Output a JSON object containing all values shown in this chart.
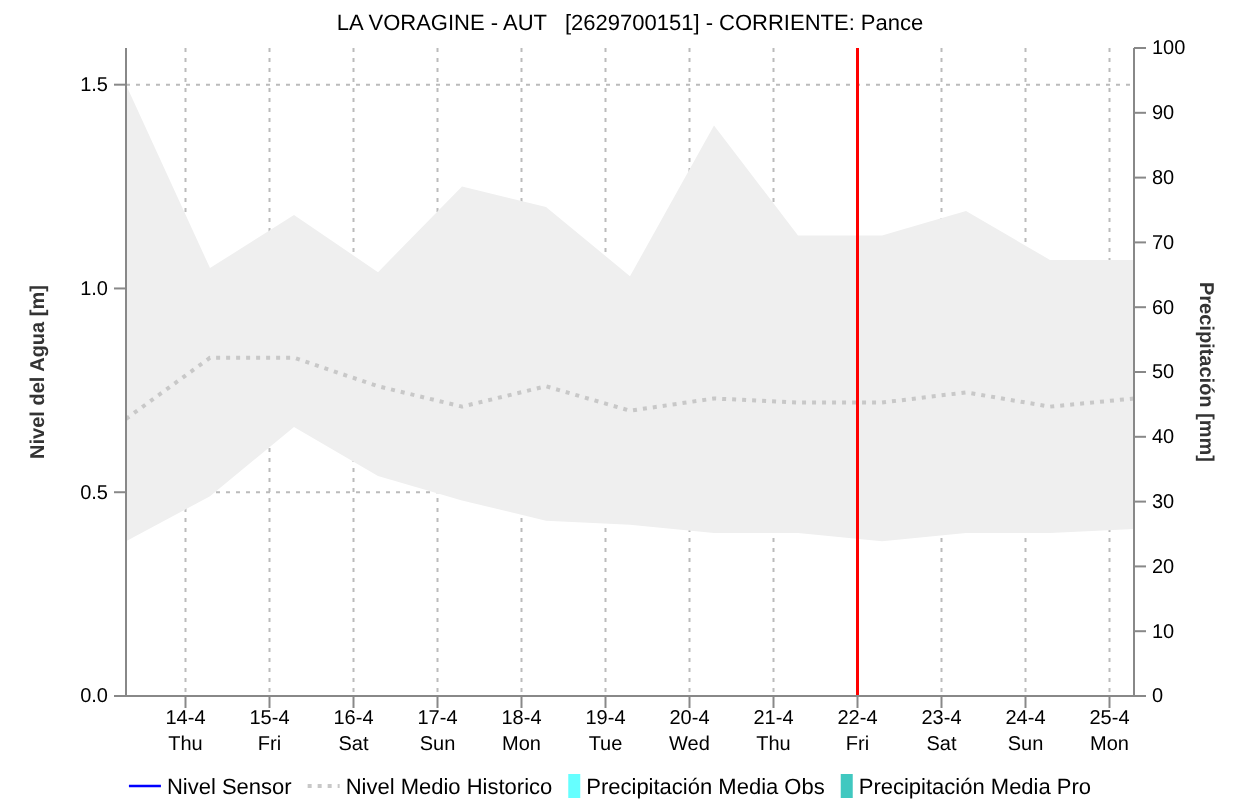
{
  "chart_data": {
    "type": "line",
    "title": "LA VORAGINE - AUT   [2629700151] - CORRIENTE: Pance",
    "ylabel": "Nivel del Agua [m]",
    "y2label": "Precipitación [mm]",
    "x": [
      "--04-13T07:00",
      "--04-14T07:00",
      "--04-15T07:00",
      "--04-16T07:00",
      "--04-17T07:00",
      "--04-18T07:00",
      "--04-19T07:00",
      "--04-20T07:00",
      "--04-21T07:00",
      "--04-22T07:00",
      "--04-23T07:00",
      "--04-24T07:00",
      "--04-25T07:00"
    ],
    "xlim": [
      "--04-13T07:00",
      "--04-25T07:00"
    ],
    "xticks": [
      {
        "value": "--04-14",
        "label": "14-4\nThu"
      },
      {
        "value": "--04-15",
        "label": "15-4\nFri"
      },
      {
        "value": "--04-16",
        "label": "16-4\nSat"
      },
      {
        "value": "--04-17",
        "label": "17-4\nSun"
      },
      {
        "value": "--04-18",
        "label": "18-4\nMon"
      },
      {
        "value": "--04-19",
        "label": "19-4\nTue"
      },
      {
        "value": "--04-20",
        "label": "20-4\nWed"
      },
      {
        "value": "--04-21",
        "label": "21-4\nThu"
      },
      {
        "value": "--04-22",
        "label": "22-4\nFri"
      },
      {
        "value": "--04-23",
        "label": "23-4\nSat"
      },
      {
        "value": "--04-24",
        "label": "24-4\nSun"
      },
      {
        "value": "--04-25",
        "label": "25-4\nMon"
      }
    ],
    "ylim": [
      0,
      1.59
    ],
    "yticks": [
      {
        "value": 0,
        "label": "0.0"
      },
      0.5,
      {
        "value": 1,
        "label": "1.0"
      },
      1.5
    ],
    "y2lim": [
      0,
      100
    ],
    "y2ticks": [
      0,
      10,
      20,
      30,
      40,
      50,
      60,
      70,
      80,
      90,
      100
    ],
    "series": [
      {
        "name": "Nivel Sensor",
        "color": "#0000ff",
        "line_style": "solid",
        "values": [
          null,
          null,
          null,
          null,
          null,
          null,
          null,
          null,
          null,
          null,
          null,
          null,
          null
        ]
      },
      {
        "name": "Nivel Medio Historico",
        "color": "#c8c8c8",
        "line_style": "dotted",
        "values": [
          0.68,
          0.83,
          0.83,
          0.76,
          0.71,
          0.76,
          0.7,
          0.73,
          0.72,
          0.72,
          0.745,
          0.71,
          0.73
        ],
        "lower": [
          0.38,
          0.49,
          0.66,
          0.54,
          0.48,
          0.43,
          0.42,
          0.4,
          0.4,
          0.38,
          0.4,
          0.4,
          0.41
        ],
        "upper": [
          1.5,
          1.05,
          1.18,
          1.04,
          1.25,
          1.2,
          1.03,
          1.4,
          1.13,
          1.13,
          1.19,
          1.07,
          1.07
        ]
      },
      {
        "name": "Precipitación Media Obs",
        "type": "bar",
        "color": "#66ffff",
        "values": [
          null,
          null,
          null,
          null,
          null,
          null,
          null,
          null,
          null,
          null,
          null,
          null,
          null
        ]
      },
      {
        "name": "Precipitación Media Pro",
        "type": "bar",
        "color": "#40c8c0",
        "values": [
          null,
          null,
          null,
          null,
          null,
          null,
          null,
          null,
          null,
          null,
          null,
          null,
          null
        ]
      }
    ],
    "ref_lines": [
      {
        "axis": "x",
        "value": "--04-22",
        "color": "#ff0000",
        "line_style": "solid"
      }
    ],
    "grid": true,
    "legend": "bottom"
  }
}
